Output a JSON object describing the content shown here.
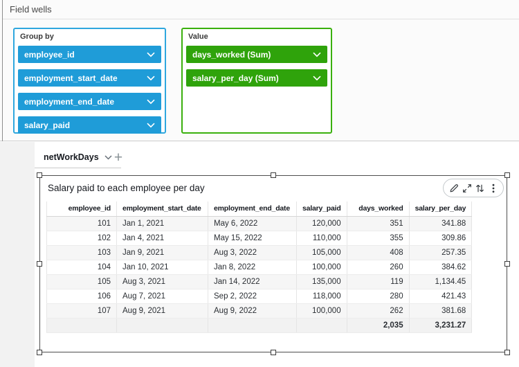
{
  "field_wells_panel": {
    "title": "Field wells",
    "group_by": {
      "label": "Group by",
      "accent": "#1f9cd8",
      "border": "#2ea7de",
      "pills": [
        "employee_id",
        "employment_start_date",
        "employment_end_date",
        "salary_paid"
      ]
    },
    "value": {
      "label": "Value",
      "accent": "#2fa30b",
      "border": "#3ab00d",
      "pills": [
        "days_worked (Sum)",
        "salary_per_day (Sum)"
      ]
    }
  },
  "sheet_bar": {
    "active_tab": "netWorkDays",
    "add_sheet_glyph": "+"
  },
  "visual": {
    "title": "Salary paid to each employee per day",
    "toolbar_icons": [
      "pencil-icon",
      "maximize-icon",
      "swap-arrows-icon",
      "kebab-menu-icon"
    ]
  },
  "chart_data": {
    "type": "table",
    "title": "Salary paid to each employee per day",
    "columns": [
      "employee_id",
      "employment_start_date",
      "employment_end_date",
      "salary_paid",
      "days_worked",
      "salary_per_day"
    ],
    "rows": [
      [
        "101",
        "Jan 1, 2021",
        "May 6, 2022",
        "120,000",
        "351",
        "341.88"
      ],
      [
        "102",
        "Jan 4, 2021",
        "May 15, 2022",
        "110,000",
        "355",
        "309.86"
      ],
      [
        "103",
        "Jan 9, 2021",
        "Aug 3, 2022",
        "105,000",
        "408",
        "257.35"
      ],
      [
        "104",
        "Jan 10, 2021",
        "Jan 8, 2022",
        "100,000",
        "260",
        "384.62"
      ],
      [
        "105",
        "Aug 3, 2021",
        "Jan 14, 2022",
        "135,000",
        "119",
        "1,134.45"
      ],
      [
        "106",
        "Aug 7, 2021",
        "Sep 2, 2022",
        "118,000",
        "280",
        "421.43"
      ],
      [
        "107",
        "Aug 9, 2021",
        "Aug 9, 2022",
        "100,000",
        "262",
        "381.68"
      ]
    ],
    "totals": [
      "",
      "",
      "",
      "",
      "2,035",
      "3,231.27"
    ]
  }
}
